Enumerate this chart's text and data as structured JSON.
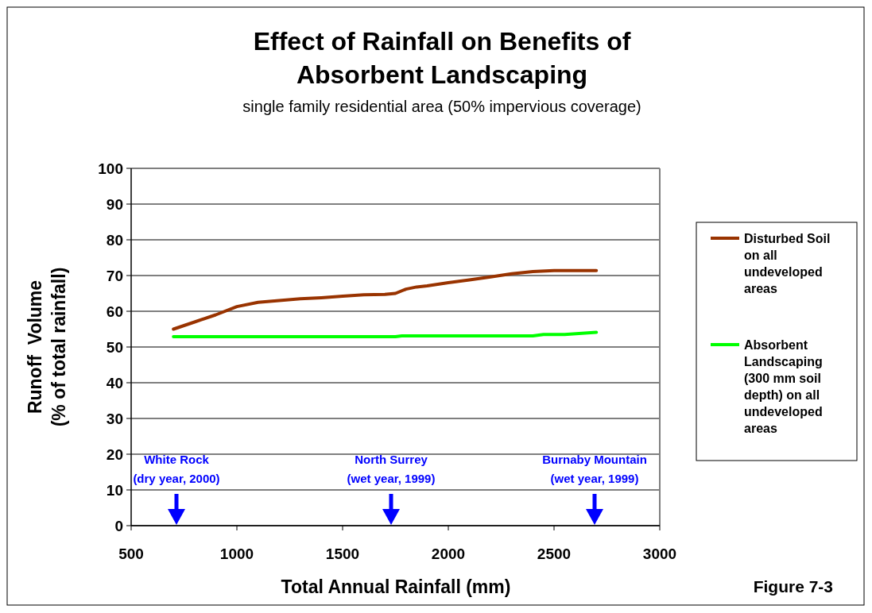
{
  "chart_data": {
    "type": "line",
    "title": "Effect of Rainfall on Benefits of Absorbent Landscaping",
    "subtitle": "single family residential area (50% impervious coverage)",
    "xlabel": "Total Annual Rainfall (mm)",
    "ylabel": "Runoff  Volume (% of total rainfall)",
    "xlim": [
      500,
      3000
    ],
    "xticks": [
      500,
      1000,
      1500,
      2000,
      2500,
      3000
    ],
    "ylim": [
      0,
      100
    ],
    "yticks": [
      0,
      10,
      20,
      30,
      40,
      50,
      60,
      70,
      80,
      90,
      100
    ],
    "grid": "y",
    "legend": "right",
    "marker": "none",
    "line_style": "solid",
    "series": [
      {
        "name": "Disturbed Soil on all undeveloped areas",
        "color": "#993300",
        "x": [
          700,
          800,
          900,
          1000,
          1100,
          1200,
          1300,
          1400,
          1500,
          1600,
          1700,
          1750,
          1800,
          1850,
          1900,
          2000,
          2100,
          2200,
          2300,
          2400,
          2500,
          2600,
          2700
        ],
        "values": [
          55,
          57,
          59,
          61.3,
          62.5,
          63,
          63.5,
          63.8,
          64.2,
          64.6,
          64.7,
          65,
          66.2,
          66.8,
          67.1,
          68,
          68.8,
          69.6,
          70.5,
          71.1,
          71.4,
          71.4,
          71.4
        ]
      },
      {
        "name": "Absorbent Landscaping (300 mm soil depth) on all undeveloped areas",
        "color": "#00ff00",
        "x": [
          700,
          1750,
          1780,
          2400,
          2450,
          2550,
          2700
        ],
        "values": [
          52.9,
          52.9,
          53.1,
          53.1,
          53.5,
          53.5,
          54.1
        ]
      }
    ],
    "annotations": [
      "White Rock (dry year, 2000)",
      "North Surrey (wet year, 1999)",
      "Burnaby Mountain (wet year, 1999)",
      "Figure 7-3"
    ]
  }
}
